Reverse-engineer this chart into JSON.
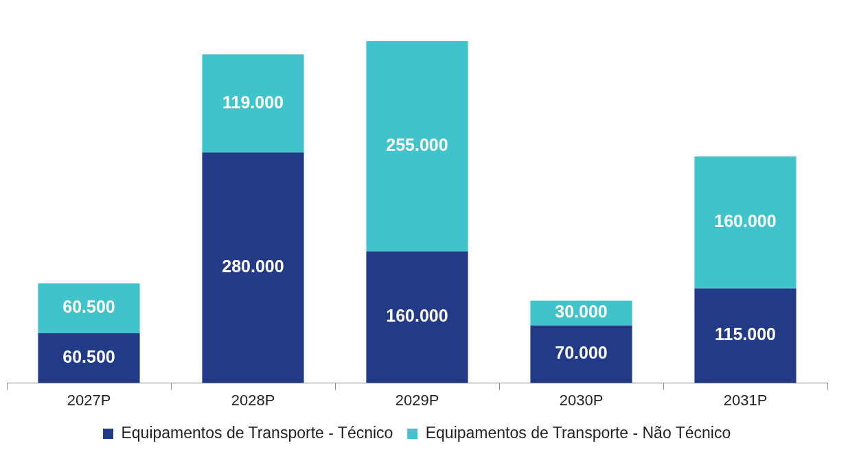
{
  "chart_data": {
    "type": "bar",
    "stacked": true,
    "legend": "bottom",
    "grid": false,
    "categories": [
      "2027P",
      "2028P",
      "2029P",
      "2030P",
      "2031P"
    ],
    "series": [
      {
        "name": "Equipamentos de Transporte - Técnico",
        "color": "#233a86",
        "values": [
          60500,
          280000,
          160000,
          70000,
          115000
        ],
        "value_labels": [
          "60.500",
          "280.000",
          "160.000",
          "70.000",
          "115.000"
        ]
      },
      {
        "name": "Equipamentos de Transporte - Não Técnico",
        "color": "#41c3cb",
        "values": [
          60500,
          119000,
          255000,
          30000,
          160000
        ],
        "value_labels": [
          "60.500",
          "119.000",
          "255.000",
          "30.000",
          "160.000"
        ]
      }
    ]
  }
}
